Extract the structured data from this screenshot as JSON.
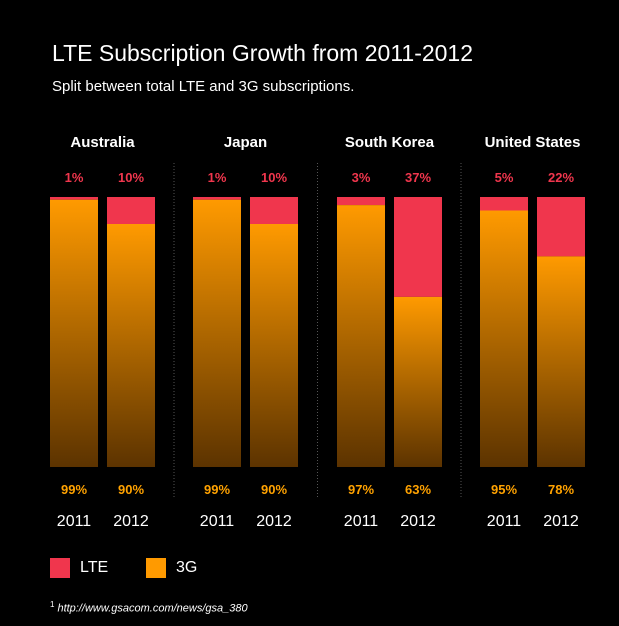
{
  "colors": {
    "lte": "#f0364d",
    "g3_top": "#ff9a00",
    "g3_bottom": "#5c3300",
    "lte_label": "#f0364d",
    "g3_label": "#ffa200",
    "divider": "#555555"
  },
  "chart_data": {
    "type": "bar",
    "stacked": true,
    "normalized_percent": true,
    "title": "LTE Subscription Growth from 2011-2012",
    "subtitle": "Split between total LTE and 3G subscriptions.",
    "groups": [
      {
        "country": "Australia",
        "bars": [
          {
            "year": "2011",
            "lte": 1,
            "g3": 99,
            "lte_label": "1%",
            "g3_label": "99%"
          },
          {
            "year": "2012",
            "lte": 10,
            "g3": 90,
            "lte_label": "10%",
            "g3_label": "90%"
          }
        ]
      },
      {
        "country": "Japan",
        "bars": [
          {
            "year": "2011",
            "lte": 1,
            "g3": 99,
            "lte_label": "1%",
            "g3_label": "99%"
          },
          {
            "year": "2012",
            "lte": 10,
            "g3": 90,
            "lte_label": "10%",
            "g3_label": "90%"
          }
        ]
      },
      {
        "country": "South Korea",
        "bars": [
          {
            "year": "2011",
            "lte": 3,
            "g3": 97,
            "lte_label": "3%",
            "g3_label": "97%"
          },
          {
            "year": "2012",
            "lte": 37,
            "g3": 63,
            "lte_label": "37%",
            "g3_label": "63%"
          }
        ]
      },
      {
        "country": "United States",
        "bars": [
          {
            "year": "2011",
            "lte": 5,
            "g3": 95,
            "lte_label": "5%",
            "g3_label": "95%"
          },
          {
            "year": "2012",
            "lte": 22,
            "g3": 78,
            "lte_label": "22%",
            "g3_label": "78%"
          }
        ]
      }
    ],
    "series": [
      {
        "name": "LTE",
        "key": "lte"
      },
      {
        "name": "3G",
        "key": "g3"
      }
    ],
    "legend_position": "bottom-left",
    "grid": false
  },
  "source": {
    "marker": "1",
    "text": "http://www.gsacom.com/news/gsa_380"
  }
}
